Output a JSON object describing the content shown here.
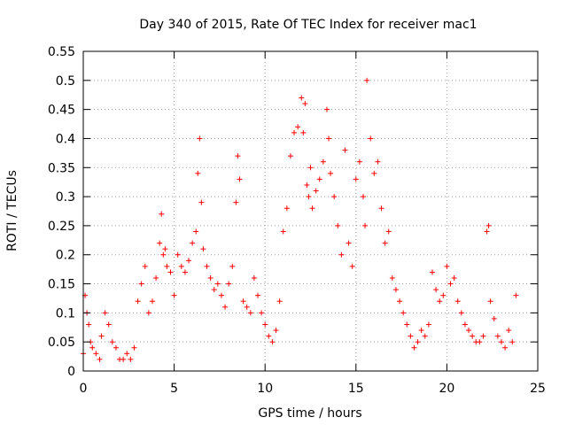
{
  "chart_data": {
    "type": "scatter",
    "title": "Day 340 of 2015, Rate Of TEC Index for receiver mac1",
    "xlabel": "GPS time / hours",
    "ylabel": "ROTI / TECUs",
    "xlim": [
      0,
      25
    ],
    "ylim": [
      0,
      0.55
    ],
    "x_ticks": [
      "0",
      "5",
      "10",
      "15",
      "20",
      "25"
    ],
    "y_ticks": [
      "0",
      "0.05",
      "0.1",
      "0.15",
      "0.2",
      "0.25",
      "0.3",
      "0.35",
      "0.4",
      "0.45",
      "0.5",
      "0.55"
    ],
    "grid": true,
    "marker": "+",
    "color": "#ff0000",
    "series": [
      {
        "x": [
          0.0,
          0.1,
          0.2,
          0.3,
          0.4,
          0.5,
          0.7,
          0.9,
          1.0,
          1.2,
          1.4,
          1.6,
          1.8,
          2.0,
          2.2,
          2.4,
          2.6,
          2.8,
          3.0,
          3.2,
          3.4,
          3.6,
          3.8,
          4.0,
          4.2,
          4.3,
          4.4,
          4.5,
          4.6,
          4.8,
          5.0,
          5.2,
          5.4,
          5.6,
          5.8,
          6.0,
          6.2,
          6.3,
          6.4,
          6.5,
          6.6,
          6.8,
          7.0,
          7.2,
          7.4,
          7.6,
          7.8,
          8.0,
          8.2,
          8.4,
          8.5,
          8.6,
          8.8,
          9.0,
          9.2,
          9.4,
          9.6,
          9.8,
          10.0,
          10.2,
          10.4,
          10.6,
          10.8,
          11.0,
          11.2,
          11.4,
          11.6,
          11.8,
          12.0,
          12.1,
          12.2,
          12.3,
          12.4,
          12.5,
          12.6,
          12.8,
          13.0,
          13.2,
          13.4,
          13.5,
          13.6,
          13.8,
          14.0,
          14.2,
          14.4,
          14.6,
          14.8,
          15.0,
          15.2,
          15.4,
          15.5,
          15.6,
          15.8,
          16.0,
          16.2,
          16.4,
          16.6,
          16.8,
          17.0,
          17.2,
          17.4,
          17.6,
          17.8,
          18.0,
          18.2,
          18.4,
          18.6,
          18.8,
          19.0,
          19.2,
          19.4,
          19.6,
          19.8,
          20.0,
          20.2,
          20.4,
          20.6,
          20.8,
          21.0,
          21.2,
          21.4,
          21.6,
          21.8,
          22.0,
          22.2,
          22.3,
          22.4,
          22.6,
          22.8,
          23.0,
          23.2,
          23.4,
          23.6,
          23.8
        ],
        "y": [
          0.03,
          0.13,
          0.1,
          0.08,
          0.05,
          0.04,
          0.03,
          0.02,
          0.06,
          0.1,
          0.08,
          0.05,
          0.04,
          0.02,
          0.02,
          0.03,
          0.02,
          0.04,
          0.12,
          0.15,
          0.18,
          0.1,
          0.12,
          0.16,
          0.22,
          0.27,
          0.2,
          0.21,
          0.18,
          0.17,
          0.13,
          0.2,
          0.18,
          0.17,
          0.19,
          0.22,
          0.24,
          0.34,
          0.4,
          0.29,
          0.21,
          0.18,
          0.16,
          0.14,
          0.15,
          0.13,
          0.11,
          0.15,
          0.18,
          0.29,
          0.37,
          0.33,
          0.12,
          0.11,
          0.1,
          0.16,
          0.13,
          0.1,
          0.08,
          0.06,
          0.05,
          0.07,
          0.12,
          0.24,
          0.28,
          0.37,
          0.41,
          0.42,
          0.47,
          0.41,
          0.46,
          0.32,
          0.3,
          0.35,
          0.28,
          0.31,
          0.33,
          0.36,
          0.45,
          0.4,
          0.34,
          0.3,
          0.25,
          0.2,
          0.38,
          0.22,
          0.18,
          0.33,
          0.36,
          0.3,
          0.25,
          0.5,
          0.4,
          0.34,
          0.36,
          0.28,
          0.22,
          0.24,
          0.16,
          0.14,
          0.12,
          0.1,
          0.08,
          0.06,
          0.04,
          0.05,
          0.07,
          0.06,
          0.08,
          0.17,
          0.14,
          0.12,
          0.13,
          0.18,
          0.15,
          0.16,
          0.12,
          0.1,
          0.08,
          0.07,
          0.06,
          0.05,
          0.05,
          0.06,
          0.24,
          0.25,
          0.12,
          0.09,
          0.06,
          0.05,
          0.04,
          0.07,
          0.05,
          0.13
        ]
      }
    ]
  }
}
